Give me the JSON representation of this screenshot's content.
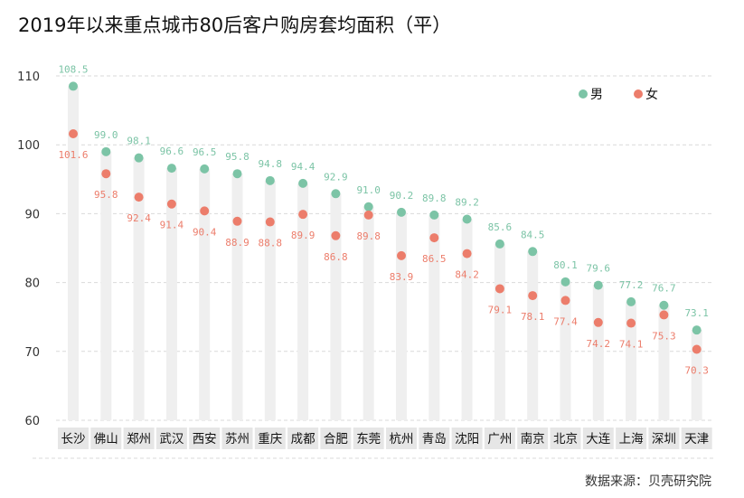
{
  "title": "2019年以来重点城市80后客户购房套均面积（平）",
  "source": "数据来源：贝壳研究院",
  "colors": {
    "male": "#7cc4a6",
    "female": "#ec7d6b",
    "bar": "#efefef",
    "grid": "#d9d9d9"
  },
  "chart_data": {
    "type": "scatter",
    "title": "2019年以来重点城市80后客户购房套均面积（平）",
    "xlabel": "",
    "ylabel": "",
    "ylim": [
      60,
      110
    ],
    "yticks": [
      60,
      70,
      80,
      90,
      100,
      110
    ],
    "grid": true,
    "legend_position": "top-right",
    "categories": [
      "长沙",
      "佛山",
      "郑州",
      "武汉",
      "西安",
      "苏州",
      "重庆",
      "成都",
      "合肥",
      "东莞",
      "杭州",
      "青岛",
      "沈阳",
      "广州",
      "南京",
      "北京",
      "大连",
      "上海",
      "深圳",
      "天津"
    ],
    "series": [
      {
        "name": "男",
        "values": [
          108.5,
          99.0,
          98.1,
          96.6,
          96.5,
          95.8,
          94.8,
          94.4,
          92.9,
          91.0,
          90.2,
          89.8,
          89.2,
          85.6,
          84.5,
          80.1,
          79.6,
          77.2,
          76.7,
          73.1
        ]
      },
      {
        "name": "女",
        "values": [
          101.6,
          95.8,
          92.4,
          91.4,
          90.4,
          88.9,
          88.8,
          89.9,
          86.8,
          89.8,
          83.9,
          86.5,
          84.2,
          79.1,
          78.1,
          77.4,
          74.2,
          74.1,
          75.3,
          70.3
        ]
      }
    ]
  }
}
